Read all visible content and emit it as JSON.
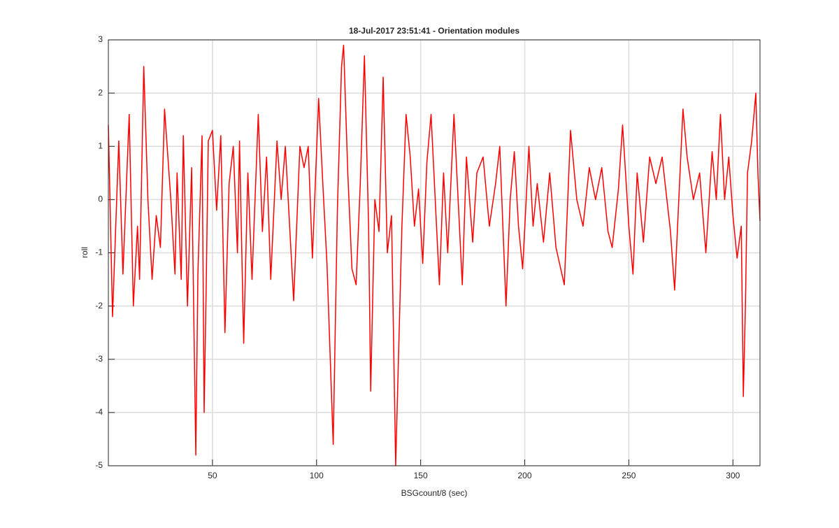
{
  "chart_data": {
    "type": "line",
    "title": "18-Jul-2017 23:51:41 - Orientation modules",
    "xlabel": "BSGcount/8 (sec)",
    "ylabel": "roll",
    "x": [
      0,
      2,
      5,
      7,
      10,
      12,
      14,
      15,
      17,
      19,
      21,
      23,
      25,
      27,
      30,
      32,
      33,
      35,
      36,
      38,
      40,
      42,
      43,
      45,
      46,
      47,
      48,
      50,
      52,
      54,
      56,
      58,
      60,
      62,
      63,
      65,
      67,
      69,
      72,
      74,
      76,
      78,
      81,
      83,
      85,
      89,
      92,
      94,
      96,
      98,
      101,
      103,
      105,
      108,
      110,
      112,
      113,
      115,
      117,
      119,
      121,
      123,
      125,
      126,
      128,
      130,
      132,
      134,
      136,
      138,
      140,
      141,
      143,
      145,
      147,
      149,
      151,
      153,
      155,
      157,
      159,
      161,
      163,
      166,
      168,
      170,
      172,
      175,
      177,
      180,
      183,
      186,
      188,
      191,
      193,
      195,
      197,
      199,
      202,
      204,
      206,
      209,
      212,
      215,
      219,
      222,
      225,
      228,
      231,
      234,
      237,
      240,
      242,
      245,
      247,
      250,
      252,
      254,
      257,
      260,
      263,
      266,
      270,
      272,
      274,
      276,
      278,
      281,
      284,
      287,
      290,
      292,
      294,
      296,
      298,
      300,
      302,
      304,
      305,
      306,
      307,
      309,
      311,
      312,
      313
    ],
    "series": [
      {
        "name": "roll",
        "color": "#ff0000",
        "values": [
          1.4,
          -2.2,
          1.1,
          -1.4,
          1.6,
          -2.0,
          -0.5,
          -1.5,
          2.5,
          0.0,
          -1.5,
          -0.3,
          -0.9,
          1.7,
          0.0,
          -1.4,
          0.5,
          -1.5,
          1.2,
          -2.0,
          0.6,
          -4.8,
          -1.4,
          1.2,
          -4.0,
          -1.6,
          1.1,
          1.3,
          -0.2,
          1.2,
          -2.5,
          0.3,
          1.0,
          -1.0,
          1.1,
          -2.7,
          0.5,
          -1.5,
          1.6,
          -0.6,
          0.8,
          -1.5,
          1.1,
          0.0,
          1.0,
          -1.9,
          1.0,
          0.6,
          1.0,
          -1.1,
          1.9,
          0.3,
          -1.2,
          -4.6,
          -0.2,
          2.5,
          2.9,
          0.5,
          -1.3,
          -1.6,
          0.3,
          2.7,
          -0.5,
          -3.6,
          0.0,
          -0.6,
          2.3,
          -1.0,
          -0.3,
          -5.0,
          -2.0,
          -0.5,
          1.6,
          0.8,
          -0.5,
          0.2,
          -1.2,
          0.7,
          1.6,
          0.0,
          -1.6,
          0.5,
          -1.0,
          1.6,
          0.0,
          -1.6,
          0.8,
          -0.8,
          0.5,
          0.8,
          -0.5,
          0.3,
          1.0,
          -2.0,
          0.0,
          0.9,
          -0.5,
          -1.3,
          1.0,
          -0.5,
          0.3,
          -0.8,
          0.5,
          -0.9,
          -1.6,
          1.3,
          0.0,
          -0.5,
          0.6,
          0.0,
          0.6,
          -0.6,
          -0.9,
          0.2,
          1.4,
          -0.5,
          -1.4,
          0.5,
          -0.8,
          0.8,
          0.3,
          0.8,
          -0.6,
          -1.7,
          0.0,
          1.7,
          0.8,
          0.0,
          0.5,
          -1.0,
          0.9,
          0.0,
          1.6,
          0.0,
          0.8,
          -0.3,
          -1.1,
          -0.5,
          -3.7,
          -2.0,
          0.5,
          1.1,
          2.0,
          0.5,
          -0.4
        ]
      }
    ],
    "xlim": [
      0,
      313
    ],
    "ylim": [
      -5,
      3
    ],
    "xticks": [
      50,
      100,
      150,
      200,
      250,
      300
    ],
    "yticks": [
      -5,
      -4,
      -3,
      -2,
      -1,
      0,
      1,
      2,
      3
    ],
    "grid": true
  }
}
